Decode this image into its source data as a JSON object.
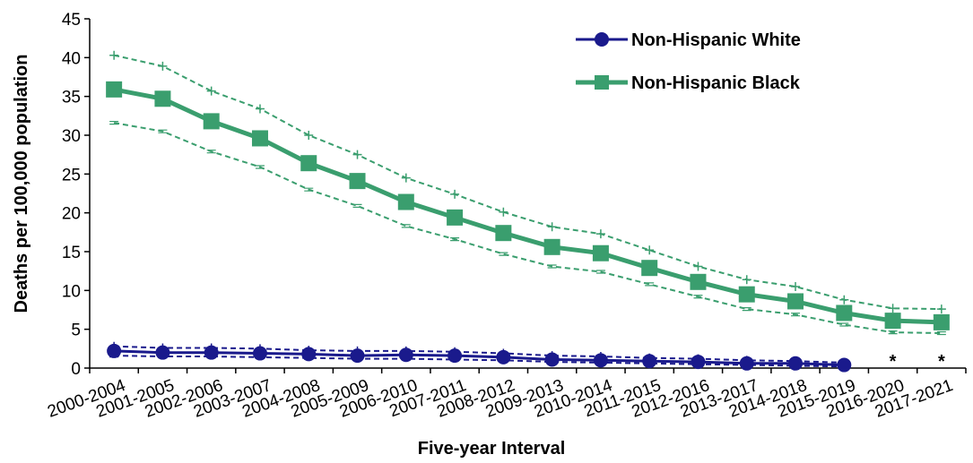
{
  "chart_data": {
    "type": "line",
    "xlabel": "Five-year Interval",
    "ylabel": "Deaths per 100,000 population",
    "ylim": [
      0,
      45
    ],
    "yticks": [
      0,
      5,
      10,
      15,
      20,
      25,
      30,
      35,
      40,
      45
    ],
    "grid": false,
    "legend_position": "top-right",
    "categories": [
      "2000-2004",
      "2001-2005",
      "2002-2006",
      "2003-2007",
      "2004-2008",
      "2005-2009",
      "2006-2010",
      "2007-2011",
      "2008-2012",
      "2009-2013",
      "2010-2014",
      "2011-2015",
      "2012-2016",
      "2013-2017",
      "2014-2018",
      "2015-2019",
      "2016-2020",
      "2017-2021"
    ],
    "series": [
      {
        "name": "Non-Hispanic White",
        "color": "#1a1a8c",
        "marker": "circle",
        "values": [
          2.2,
          2.0,
          2.0,
          1.9,
          1.8,
          1.6,
          1.7,
          1.6,
          1.4,
          1.1,
          1.0,
          0.9,
          0.8,
          0.6,
          0.6,
          0.4,
          null,
          null
        ],
        "upper": [
          2.8,
          2.6,
          2.6,
          2.5,
          2.3,
          2.2,
          2.2,
          2.1,
          1.9,
          1.6,
          1.5,
          1.3,
          1.2,
          1.0,
          0.9,
          0.7,
          null,
          null
        ],
        "lower": [
          1.6,
          1.5,
          1.5,
          1.4,
          1.3,
          1.2,
          1.2,
          1.1,
          1.0,
          0.8,
          0.7,
          0.6,
          0.5,
          0.4,
          0.3,
          0.2,
          null,
          null
        ]
      },
      {
        "name": "Non-Hispanic Black",
        "color": "#3a9e6e",
        "marker": "square",
        "values": [
          35.9,
          34.7,
          31.8,
          29.6,
          26.4,
          24.1,
          21.4,
          19.4,
          17.4,
          15.6,
          14.8,
          12.9,
          11.1,
          9.5,
          8.6,
          7.1,
          6.1,
          5.9
        ],
        "upper": [
          40.3,
          38.9,
          35.7,
          33.4,
          30.0,
          27.5,
          24.5,
          22.4,
          20.1,
          18.2,
          17.3,
          15.2,
          13.1,
          11.4,
          10.5,
          8.8,
          7.7,
          7.6
        ],
        "lower": [
          31.6,
          30.5,
          27.9,
          25.9,
          23.0,
          20.9,
          18.3,
          16.6,
          14.7,
          13.1,
          12.4,
          10.8,
          9.2,
          7.6,
          6.9,
          5.6,
          4.6,
          4.5
        ]
      }
    ],
    "annotations": [
      {
        "category": "2016-2020",
        "text": "*"
      },
      {
        "category": "2017-2021",
        "text": "*"
      }
    ]
  }
}
